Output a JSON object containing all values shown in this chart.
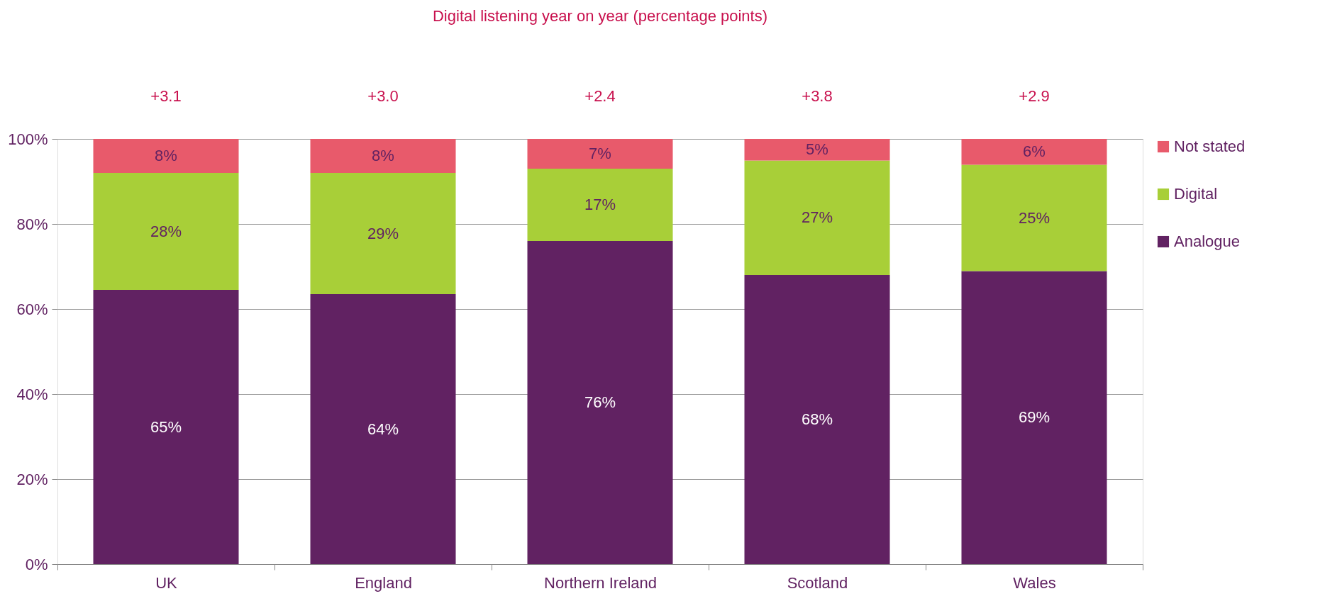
{
  "chart_data": {
    "type": "bar",
    "stacked": true,
    "title": "Digital listening year on year (percentage points)",
    "categories": [
      "UK",
      "England",
      "Northern Ireland",
      "Scotland",
      "Wales"
    ],
    "series": [
      {
        "name": "Analogue",
        "color": "#612262",
        "values": [
          64.5,
          63.5,
          76.0,
          68.0,
          68.9
        ],
        "value_labels": [
          "65%",
          "64%",
          "76%",
          "68%",
          "69%"
        ]
      },
      {
        "name": "Digital",
        "color": "#a8cf38",
        "values": [
          27.5,
          28.5,
          17.0,
          26.9,
          25.0
        ],
        "value_labels": [
          "28%",
          "29%",
          "17%",
          "27%",
          "25%"
        ]
      },
      {
        "name": "Not stated",
        "color": "#e85a6b",
        "values": [
          8.0,
          8.0,
          7.0,
          5.1,
          6.1
        ],
        "value_labels": [
          "8%",
          "8%",
          "7%",
          "5%",
          "6%"
        ]
      }
    ],
    "annotations": [
      "+3.1",
      "+3.0",
      "+2.4",
      "+3.8",
      "+2.9"
    ],
    "ylim": [
      0,
      100
    ],
    "yticks": [
      {
        "value": 0,
        "label": "0%"
      },
      {
        "value": 20,
        "label": "20%"
      },
      {
        "value": 40,
        "label": "40%"
      },
      {
        "value": 60,
        "label": "60%"
      },
      {
        "value": 80,
        "label": "80%"
      },
      {
        "value": 100,
        "label": "100%"
      }
    ],
    "grid": "y",
    "legend": "right"
  }
}
